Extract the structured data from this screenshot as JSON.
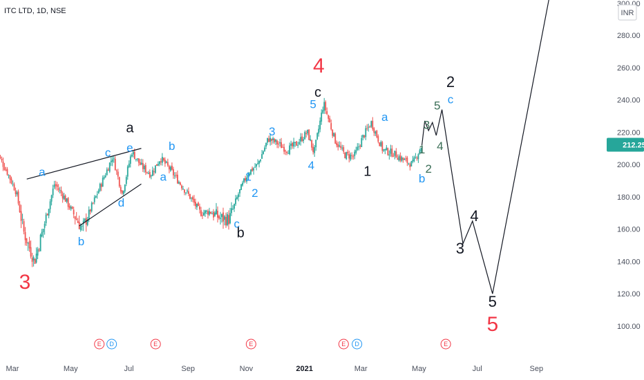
{
  "header": {
    "symbol": "ITC LTD, 1D, NSE",
    "currency": "INR",
    "axis_top_label": "300.00"
  },
  "colors": {
    "up": "#26a69a",
    "down": "#ef5350",
    "price_tag": "#26a69a",
    "blue": "#2196f3",
    "red": "#f23645",
    "black": "#131722",
    "green": "#3b6e57"
  },
  "chart_data": {
    "type": "candlestick",
    "title": "ITC LTD, 1D, NSE",
    "ylabel": "INR",
    "ylim": [
      95,
      302
    ],
    "y_ticks": [
      "280.00",
      "260.00",
      "240.00",
      "220.00",
      "200.00",
      "180.00",
      "160.00",
      "140.00",
      "120.00",
      "100.00"
    ],
    "x_ticks": [
      "Mar",
      "May",
      "Jul",
      "Sep",
      "Nov",
      "2021",
      "Mar",
      "May",
      "Jul",
      "Sep"
    ],
    "last_price": "212.25",
    "price_path": [
      [
        "2020-02-13",
        208
      ],
      [
        "2020-02-24",
        196
      ],
      [
        "2020-03-05",
        183
      ],
      [
        "2020-03-13",
        158
      ],
      [
        "2020-03-24",
        140
      ],
      [
        "2020-04-03",
        162
      ],
      [
        "2020-04-14",
        188
      ],
      [
        "2020-04-24",
        180
      ],
      [
        "2020-05-13",
        160
      ],
      [
        "2020-06-02",
        188
      ],
      [
        "2020-06-14",
        205
      ],
      [
        "2020-06-24",
        182
      ],
      [
        "2020-07-04",
        208
      ],
      [
        "2020-07-14",
        199
      ],
      [
        "2020-07-24",
        194
      ],
      [
        "2020-08-03",
        204
      ],
      [
        "2020-08-13",
        197
      ],
      [
        "2020-08-24",
        188
      ],
      [
        "2020-09-03",
        180
      ],
      [
        "2020-09-14",
        170
      ],
      [
        "2020-09-24",
        171
      ],
      [
        "2020-10-04",
        167
      ],
      [
        "2020-10-14",
        166
      ],
      [
        "2020-10-24",
        182
      ],
      [
        "2020-11-03",
        195
      ],
      [
        "2020-11-13",
        200
      ],
      [
        "2020-11-24",
        216
      ],
      [
        "2020-12-04",
        213
      ],
      [
        "2020-12-14",
        209
      ],
      [
        "2020-12-24",
        213
      ],
      [
        "2021-01-04",
        220
      ],
      [
        "2021-01-11",
        207
      ],
      [
        "2021-01-21",
        238
      ],
      [
        "2021-02-02",
        215
      ],
      [
        "2021-02-12",
        206
      ],
      [
        "2021-02-22",
        205
      ],
      [
        "2021-03-04",
        218
      ],
      [
        "2021-03-12",
        226
      ],
      [
        "2021-03-24",
        209
      ],
      [
        "2021-04-04",
        207
      ],
      [
        "2021-04-14",
        203
      ],
      [
        "2021-04-24",
        200
      ],
      [
        "2021-05-04",
        212
      ]
    ],
    "projection_path": [
      [
        "2021-05-04",
        212
      ],
      [
        "2021-05-07",
        227
      ],
      [
        "2021-05-11",
        221
      ],
      [
        "2021-05-15",
        226
      ],
      [
        "2021-05-19",
        218
      ],
      [
        "2021-05-25",
        234
      ],
      [
        "2021-06-16",
        151
      ],
      [
        "2021-06-26",
        165
      ],
      [
        "2021-07-17",
        120
      ],
      [
        "2021-09-14",
        302
      ]
    ],
    "trendlines": [
      [
        [
          "2020-03-16",
          191
        ],
        [
          "2020-07-14",
          210
        ]
      ],
      [
        [
          "2020-05-10",
          162
        ],
        [
          "2020-07-14",
          188
        ]
      ]
    ],
    "wave_labels": [
      {
        "text": "3",
        "date": "2020-03-14",
        "price": 123,
        "color": "red",
        "size": 30
      },
      {
        "text": "a",
        "date": "2020-04-01",
        "price": 193,
        "color": "blue",
        "size": 17
      },
      {
        "text": "b",
        "date": "2020-05-12",
        "price": 150,
        "color": "blue",
        "size": 17
      },
      {
        "text": "c",
        "date": "2020-06-09",
        "price": 205,
        "color": "blue",
        "size": 17
      },
      {
        "text": "d",
        "date": "2020-06-23",
        "price": 174,
        "color": "blue",
        "size": 17
      },
      {
        "text": "e",
        "date": "2020-07-02",
        "price": 208,
        "color": "blue",
        "size": 17
      },
      {
        "text": "a",
        "date": "2020-07-02",
        "price": 220,
        "color": "black",
        "size": 20
      },
      {
        "text": "b",
        "date": "2020-08-15",
        "price": 209,
        "color": "blue",
        "size": 17
      },
      {
        "text": "a",
        "date": "2020-08-06",
        "price": 190,
        "color": "blue",
        "size": 17
      },
      {
        "text": "c",
        "date": "2020-10-22",
        "price": 161,
        "color": "blue",
        "size": 17
      },
      {
        "text": "b",
        "date": "2020-10-26",
        "price": 155,
        "color": "black",
        "size": 20
      },
      {
        "text": "1",
        "date": "2020-11-03",
        "price": 190,
        "color": "blue",
        "size": 17
      },
      {
        "text": "2",
        "date": "2020-11-10",
        "price": 180,
        "color": "blue",
        "size": 17
      },
      {
        "text": "3",
        "date": "2020-11-28",
        "price": 218,
        "color": "blue",
        "size": 17
      },
      {
        "text": "4",
        "date": "2021-01-08",
        "price": 197,
        "color": "blue",
        "size": 17
      },
      {
        "text": "5",
        "date": "2021-01-10",
        "price": 235,
        "color": "blue",
        "size": 17
      },
      {
        "text": "c",
        "date": "2021-01-15",
        "price": 242,
        "color": "black",
        "size": 20
      },
      {
        "text": "4",
        "date": "2021-01-16",
        "price": 257,
        "color": "red",
        "size": 30
      },
      {
        "text": "1",
        "date": "2021-03-08",
        "price": 193,
        "color": "black",
        "size": 20
      },
      {
        "text": "a",
        "date": "2021-03-26",
        "price": 227,
        "color": "blue",
        "size": 17
      },
      {
        "text": "b",
        "date": "2021-05-04",
        "price": 189,
        "color": "blue",
        "size": 17
      },
      {
        "text": "1",
        "date": "2021-05-04",
        "price": 207,
        "color": "green",
        "size": 17
      },
      {
        "text": "2",
        "date": "2021-05-11",
        "price": 195,
        "color": "green",
        "size": 17
      },
      {
        "text": "3",
        "date": "2021-05-09",
        "price": 222,
        "color": "green",
        "size": 17
      },
      {
        "text": "4",
        "date": "2021-05-23",
        "price": 209,
        "color": "green",
        "size": 17
      },
      {
        "text": "5",
        "date": "2021-05-20",
        "price": 234,
        "color": "green",
        "size": 17
      },
      {
        "text": "c",
        "date": "2021-06-03",
        "price": 238,
        "color": "blue",
        "size": 17
      },
      {
        "text": "2",
        "date": "2021-06-03",
        "price": 248,
        "color": "black",
        "size": 22
      },
      {
        "text": "3",
        "date": "2021-06-13",
        "price": 145,
        "color": "black",
        "size": 22
      },
      {
        "text": "4",
        "date": "2021-06-28",
        "price": 165,
        "color": "black",
        "size": 22
      },
      {
        "text": "5",
        "date": "2021-07-17",
        "price": 112,
        "color": "black",
        "size": 22
      },
      {
        "text": "5",
        "date": "2021-07-17",
        "price": 97,
        "color": "red",
        "size": 30
      }
    ],
    "events": [
      {
        "date": "2020-05-31",
        "type": "E",
        "color": "red"
      },
      {
        "date": "2020-06-13",
        "type": "D",
        "color": "blue"
      },
      {
        "date": "2020-07-29",
        "type": "E",
        "color": "red"
      },
      {
        "date": "2020-11-06",
        "type": "E",
        "color": "red"
      },
      {
        "date": "2021-02-11",
        "type": "E",
        "color": "red"
      },
      {
        "date": "2021-02-25",
        "type": "D",
        "color": "blue"
      },
      {
        "date": "2021-05-29",
        "type": "E",
        "color": "red"
      }
    ]
  }
}
